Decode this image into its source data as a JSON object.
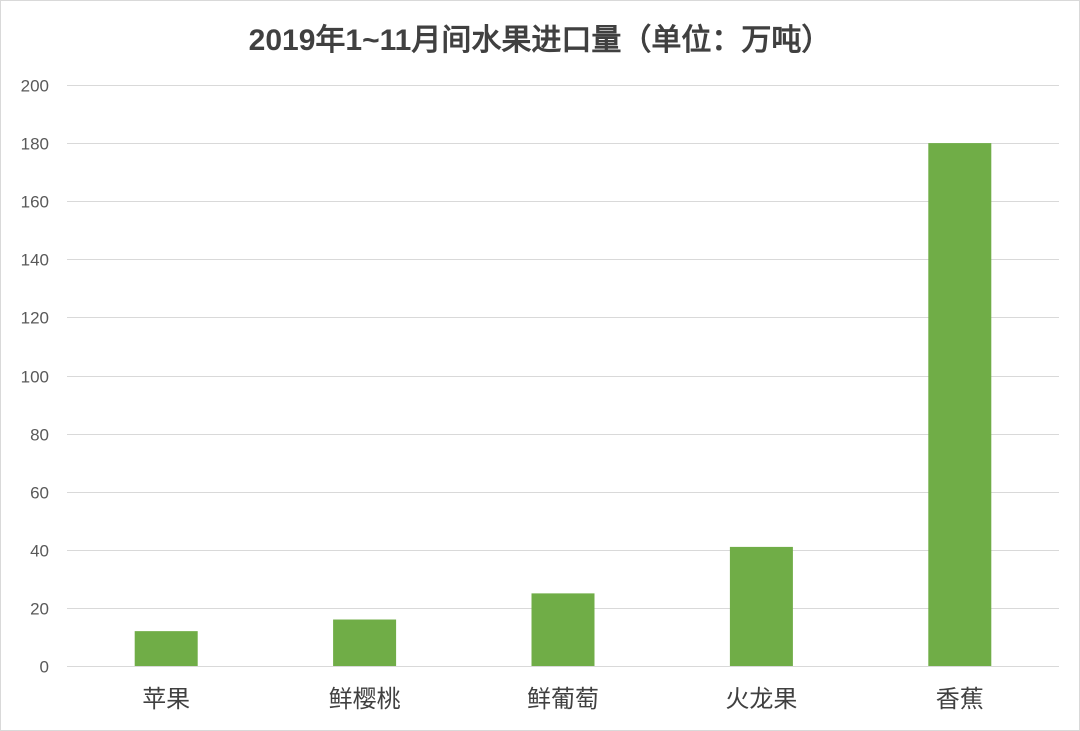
{
  "chart_data": {
    "type": "bar",
    "title": "2019年1~11月间水果进口量（单位：万吨）",
    "categories": [
      "苹果",
      "鲜樱桃",
      "鲜葡萄",
      "火龙果",
      "香蕉"
    ],
    "values": [
      12,
      16,
      25,
      41,
      180
    ],
    "ylim": [
      0,
      200
    ],
    "yticks": [
      0,
      20,
      40,
      60,
      80,
      100,
      120,
      140,
      160,
      180,
      200
    ],
    "xlabel": "",
    "ylabel": "",
    "grid": true,
    "legend": "none",
    "bar_color": "#70ad47",
    "grid_color": "#d9d9d9"
  }
}
